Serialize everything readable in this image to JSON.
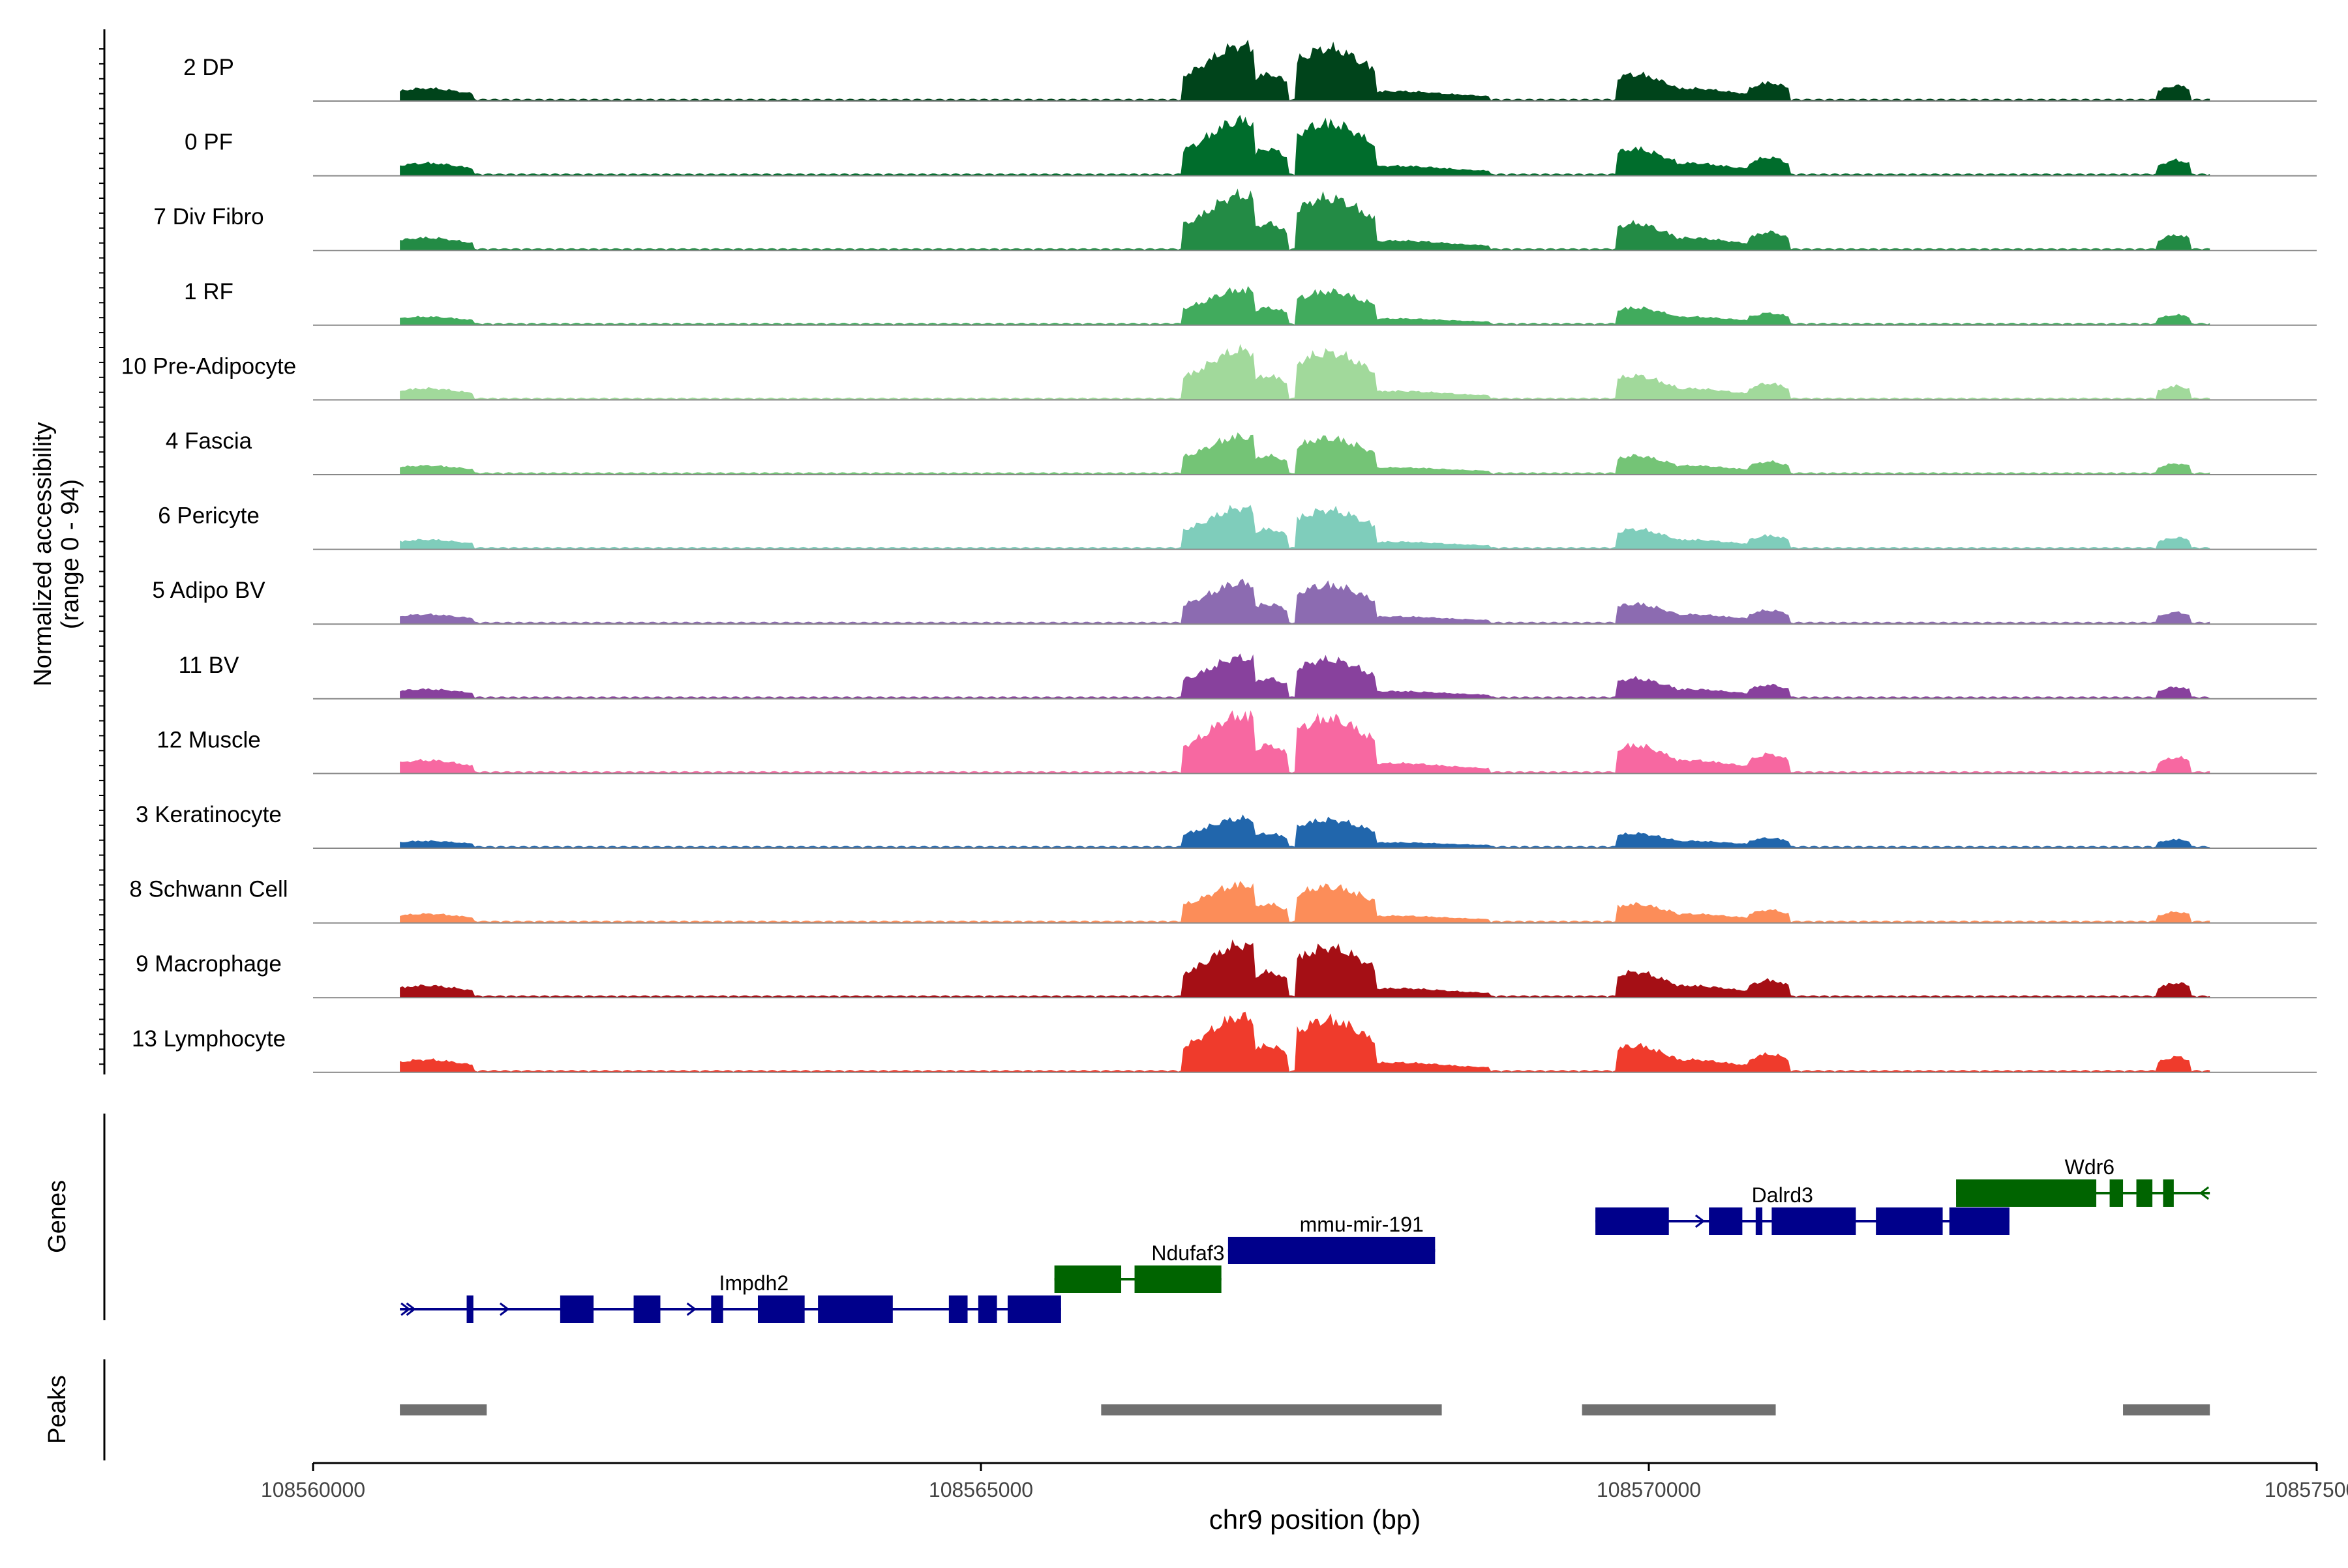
{
  "chart_data": {
    "type": "area",
    "title": "",
    "xlabel": "chr9 position (bp)",
    "ylabel": [
      "Normalized accessibility",
      "(range 0 - 94)"
    ],
    "xlim": [
      108560000,
      108575000
    ],
    "ylim": [
      0,
      94
    ],
    "x_ticks": [
      108560000,
      108565000,
      108570000,
      108575000
    ],
    "x_tick_labels": [
      "108560000",
      "108565000",
      "108570000",
      "108575000"
    ],
    "tracks": [
      {
        "name": "2 DP",
        "color": "#00441b",
        "scale": 0.95
      },
      {
        "name": "0 PF",
        "color": "#006d2c",
        "scale": 0.95
      },
      {
        "name": "7 Div Fibro",
        "color": "#238b45",
        "scale": 0.95
      },
      {
        "name": "1 RF",
        "color": "#41ab5d",
        "scale": 0.6
      },
      {
        "name": "10 Pre-Adipocyte",
        "color": "#a1d99b",
        "scale": 0.85
      },
      {
        "name": "4 Fascia",
        "color": "#74c476",
        "scale": 0.65
      },
      {
        "name": "6 Pericyte",
        "color": "#7fcdbb",
        "scale": 0.7
      },
      {
        "name": "5 Adipo BV",
        "color": "#8c6bb1",
        "scale": 0.7
      },
      {
        "name": "11 BV",
        "color": "#88419d",
        "scale": 0.7
      },
      {
        "name": "12 Muscle",
        "color": "#f768a1",
        "scale": 1.0
      },
      {
        "name": "3 Keratinocyte",
        "color": "#2166ac",
        "scale": 0.5
      },
      {
        "name": "8 Schwann Cell",
        "color": "#fc8d59",
        "scale": 0.65
      },
      {
        "name": "9 Macrophage",
        "color": "#a50f15",
        "scale": 0.9
      },
      {
        "name": "13 Lymphocyte",
        "color": "#ef3b2c",
        "scale": 0.95
      }
    ],
    "peak_profile": [
      {
        "start": 108560650,
        "end": 108561200,
        "center": 108560850,
        "height": 0.2
      },
      {
        "start": 108566500,
        "end": 108567050,
        "center": 108566950,
        "height": 0.95
      },
      {
        "start": 108567000,
        "end": 108567300,
        "center": 108567150,
        "height": 0.45
      },
      {
        "start": 108567350,
        "end": 108567950,
        "center": 108567600,
        "height": 0.9
      },
      {
        "start": 108567950,
        "end": 108568800,
        "center": 108568100,
        "height": 0.15
      },
      {
        "start": 108569750,
        "end": 108570200,
        "center": 108569900,
        "height": 0.45
      },
      {
        "start": 108570200,
        "end": 108570850,
        "center": 108570300,
        "height": 0.2
      },
      {
        "start": 108570750,
        "end": 108571050,
        "center": 108570900,
        "height": 0.3
      },
      {
        "start": 108573800,
        "end": 108574050,
        "center": 108573950,
        "height": 0.25
      }
    ],
    "genes_label": "Genes",
    "genes": [
      {
        "name": "Impdh2",
        "strand": "+",
        "color": "#00008b",
        "row": 3,
        "start": 108560650,
        "end": 108565600,
        "exons": [
          [
            108561150,
            108561200
          ],
          [
            108561850,
            108562100
          ],
          [
            108562400,
            108562600
          ],
          [
            108562980,
            108563070
          ],
          [
            108563330,
            108563680
          ],
          [
            108563780,
            108564340
          ],
          [
            108564760,
            108564900
          ],
          [
            108564980,
            108565120
          ],
          [
            108565200,
            108565600
          ]
        ]
      },
      {
        "name": "Ndufaf3",
        "strand": "",
        "color": "#006400",
        "row": 2,
        "start": 108565550,
        "end": 108566800,
        "exons": [
          [
            108565550,
            108566050
          ],
          [
            108566150,
            108566800
          ]
        ]
      },
      {
        "name": "mmu-mir-191",
        "strand": "+",
        "color": "#00008b",
        "row": 1,
        "start": 108566850,
        "end": 108568400,
        "exons": [
          [
            108566850,
            108568400
          ]
        ]
      },
      {
        "name": "Dalrd3",
        "strand": "+",
        "color": "#00008b",
        "row": 0,
        "start": 108569600,
        "end": 108572700,
        "exons": [
          [
            108569600,
            108570150
          ],
          [
            108570450,
            108570700
          ],
          [
            108570800,
            108570850
          ],
          [
            108570920,
            108571550
          ],
          [
            108571700,
            108572200
          ],
          [
            108572250,
            108572700
          ]
        ]
      },
      {
        "name": "Wdr6",
        "strand": "-",
        "color": "#006400",
        "row": -1,
        "start": 108572300,
        "end": 108574200,
        "exons": [
          [
            108572300,
            108573350
          ],
          [
            108573450,
            108573550
          ],
          [
            108573650,
            108573770
          ],
          [
            108573850,
            108573930
          ]
        ]
      }
    ],
    "peaks_label": "Peaks",
    "peaks": [
      [
        108560650,
        108561300
      ],
      [
        108565900,
        108568450
      ],
      [
        108569500,
        108570950
      ],
      [
        108573550,
        108574200
      ]
    ]
  }
}
